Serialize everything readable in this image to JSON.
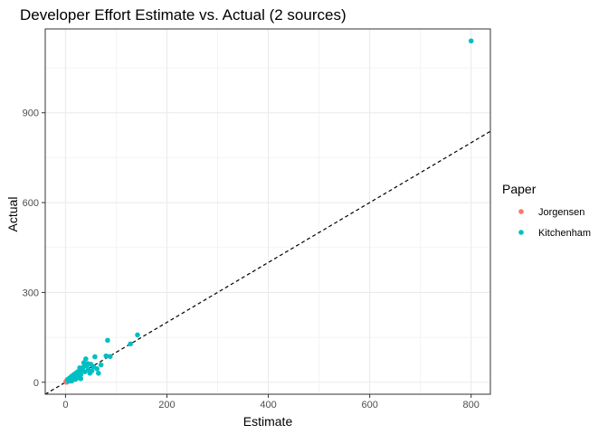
{
  "chart_data": {
    "type": "scatter",
    "title": "Developer Effort Estimate vs. Actual (2 sources)",
    "xlabel": "Estimate",
    "ylabel": "Actual",
    "xlim": [
      -40,
      838
    ],
    "ylim": [
      -40,
      1180
    ],
    "xticks": [
      0,
      200,
      400,
      600,
      800
    ],
    "yticks": [
      0,
      300,
      600,
      900
    ],
    "grid": true,
    "reference_line": {
      "type": "identity",
      "style": "dashed",
      "color": "#000000"
    },
    "legend": {
      "title": "Paper",
      "placement": "right"
    },
    "series": [
      {
        "name": "Jorgensen",
        "color": "#F8766D",
        "points": [
          [
            1,
            1
          ],
          [
            2,
            2
          ],
          [
            3,
            3
          ],
          [
            4,
            5
          ],
          [
            5,
            4
          ],
          [
            6,
            7
          ],
          [
            2,
            4
          ],
          [
            3,
            1
          ],
          [
            5,
            8
          ],
          [
            7,
            6
          ],
          [
            8,
            9
          ],
          [
            4,
            2
          ],
          [
            6,
            3
          ],
          [
            1,
            3
          ],
          [
            9,
            12
          ],
          [
            3,
            6
          ],
          [
            10,
            8
          ],
          [
            2,
            0
          ],
          [
            5,
            10
          ],
          [
            7,
            11
          ]
        ]
      },
      {
        "name": "Kitchenham",
        "color": "#00BFC4",
        "points": [
          [
            800,
            1140
          ],
          [
            142,
            158
          ],
          [
            128,
            128
          ],
          [
            83,
            140
          ],
          [
            80,
            88
          ],
          [
            88,
            86
          ],
          [
            70,
            58
          ],
          [
            62,
            45
          ],
          [
            58,
            85
          ],
          [
            55,
            52
          ],
          [
            50,
            60
          ],
          [
            48,
            30
          ],
          [
            45,
            42
          ],
          [
            42,
            55
          ],
          [
            40,
            78
          ],
          [
            38,
            35
          ],
          [
            36,
            65
          ],
          [
            35,
            50
          ],
          [
            32,
            40
          ],
          [
            30,
            25
          ],
          [
            28,
            48
          ],
          [
            26,
            15
          ],
          [
            25,
            30
          ],
          [
            24,
            35
          ],
          [
            22,
            20
          ],
          [
            20,
            30
          ],
          [
            18,
            12
          ],
          [
            16,
            25
          ],
          [
            15,
            18
          ],
          [
            14,
            8
          ],
          [
            12,
            20
          ],
          [
            11,
            10
          ],
          [
            10,
            16
          ],
          [
            9,
            6
          ],
          [
            8,
            14
          ],
          [
            6,
            10
          ],
          [
            5,
            5
          ],
          [
            4,
            9
          ],
          [
            12,
            4
          ],
          [
            20,
            10
          ],
          [
            65,
            30
          ],
          [
            52,
            38
          ],
          [
            44,
            62
          ],
          [
            30,
            12
          ],
          [
            18,
            22
          ]
        ]
      }
    ]
  }
}
